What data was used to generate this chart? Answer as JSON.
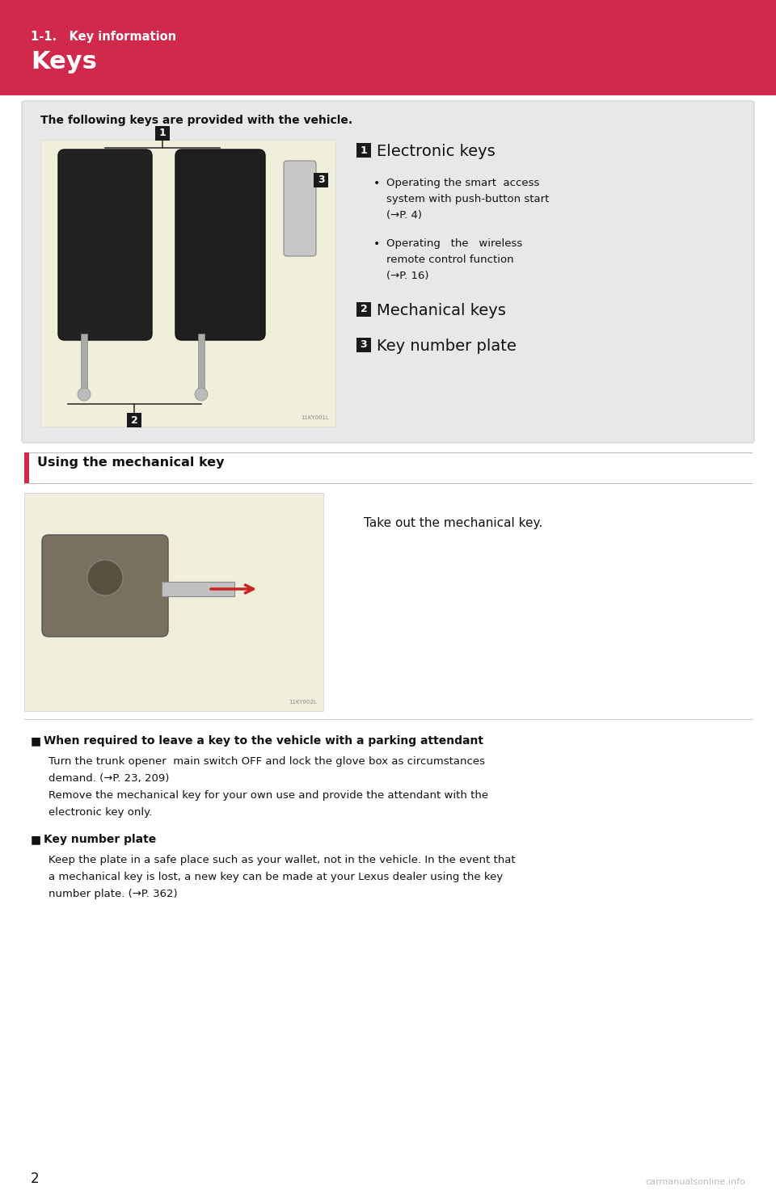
{
  "page_bg": "#ffffff",
  "header_bg": "#d0294b",
  "header_text_color": "#ffffff",
  "header_subtitle": "1-1.   Key information",
  "header_title": "Keys",
  "header_subtitle_size": 10,
  "header_title_size": 20,
  "section1_box_bg": "#e8e8e8",
  "section1_intro": "The following keys are provided with the vehicle.",
  "img1_bg": "#f0efdc",
  "num_box_bg": "#1a1a1a",
  "num_box_color": "#ffffff",
  "electronic_keys_title": "Electronic keys",
  "bullet1_lines": [
    "Operating the smart  access",
    "system with push-button start",
    "(→P. 4)"
  ],
  "bullet2_lines": [
    "Operating   the   wireless",
    "remote control function",
    "(→P. 16)"
  ],
  "mechanical_keys": "Mechanical keys",
  "key_number_plate": "Key number plate",
  "section2_bar_bg": "#d0294b",
  "section2_title": "Using the mechanical key",
  "section2_text": "Take out the mechanical key.",
  "img2_bg": "#f0efdc",
  "note1_square": "■",
  "note1_title": "When required to leave a key to the vehicle with a parking attendant",
  "note1_body": [
    "Turn the trunk opener  main switch OFF and lock the glove box as circumstances",
    "demand. (→P. 23, 209)",
    "Remove the mechanical key for your own use and provide the attendant with the",
    "electronic key only."
  ],
  "note2_square": "■",
  "note2_title": "Key number plate",
  "note2_body": [
    "Keep the plate in a safe place such as your wallet, not in the vehicle. In the event that",
    "a mechanical key is lost, a new key can be made at your Lexus dealer using the key",
    "number plate. (→P. 362)"
  ],
  "page_number": "2",
  "watermark": "carmanualsonline.info",
  "fig_w": 9.6,
  "fig_h": 14.84,
  "dpi": 100
}
